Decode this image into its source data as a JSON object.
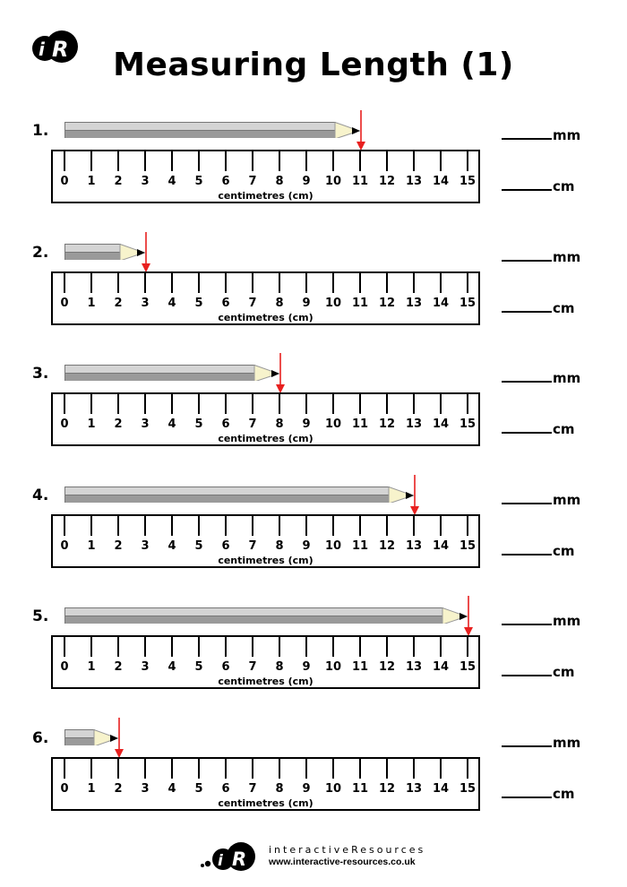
{
  "header": {
    "logo_text": "iR",
    "title": "Measuring Length (1)"
  },
  "ruler": {
    "unit_label": "centimetres (cm)",
    "numbers": [
      "0",
      "1",
      "2",
      "3",
      "4",
      "5",
      "6",
      "7",
      "8",
      "9",
      "10",
      "11",
      "12",
      "13",
      "14",
      "15"
    ]
  },
  "questions": [
    {
      "number": "1.",
      "pencil_length_cm": 11,
      "mm_label": "mm",
      "cm_label": "cm"
    },
    {
      "number": "2.",
      "pencil_length_cm": 3,
      "mm_label": "mm",
      "cm_label": "cm"
    },
    {
      "number": "3.",
      "pencil_length_cm": 8,
      "mm_label": "mm",
      "cm_label": "cm"
    },
    {
      "number": "4.",
      "pencil_length_cm": 13,
      "mm_label": "mm",
      "cm_label": "cm"
    },
    {
      "number": "5.",
      "pencil_length_cm": 15,
      "mm_label": "mm",
      "cm_label": "cm"
    },
    {
      "number": "6.",
      "pencil_length_cm": 2,
      "mm_label": "mm",
      "cm_label": "cm"
    }
  ],
  "colors": {
    "arrow": "#e8201f",
    "pencil_light": "#d4d4d4",
    "pencil_dark": "#9a9a9a",
    "pencil_wood": "#f7f3cc",
    "pencil_lead": "#000000"
  },
  "footer": {
    "brand": "interactiveResources",
    "url": "www.interactive-resources.co.uk"
  }
}
